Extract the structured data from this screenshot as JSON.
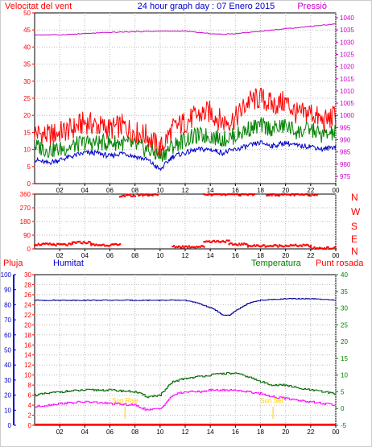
{
  "header": {
    "wind_label": "Velocitat del vent",
    "title": "24 hour graph day : 07 Enero 2015",
    "pressure_label": "Pressió"
  },
  "compass": [
    "N",
    "W",
    "S",
    "E",
    "N"
  ],
  "bottom_header": {
    "rain": "Pluja",
    "humidity": "Humitat",
    "temperature": "Temperatura",
    "dewpoint": "Punt rosada"
  },
  "markers": {
    "sunrise": "Sun Rise",
    "sunset": "Sun Set"
  },
  "colors": {
    "wind_gust": "#ff0000",
    "wind_avg": "#0000cc",
    "wind_low": "#008000",
    "pressure": "#cc00cc",
    "direction": "#ff0000",
    "humidity": "#000099",
    "temperature": "#006600",
    "dewpoint": "#ff00ff",
    "rain": "#ff0000",
    "sun": "#ffcc00"
  },
  "chart_data": [
    {
      "type": "line",
      "title": "24 hour graph day : 07 Enero 2015",
      "x_ticks": [
        "02",
        "04",
        "06",
        "08",
        "10",
        "12",
        "14",
        "16",
        "18",
        "20",
        "22",
        "00"
      ],
      "y_left_ticks": [
        0,
        5,
        10,
        15,
        20,
        25,
        30,
        35,
        40,
        45,
        50
      ],
      "y_right_ticks": [
        975,
        980,
        985,
        990,
        995,
        1000,
        1005,
        1010,
        1015,
        1020,
        1025,
        1030,
        1035,
        1040
      ],
      "ylim_left": [
        0,
        50
      ],
      "ylim_right": [
        972,
        1042
      ],
      "xlim": [
        0,
        24
      ],
      "grid": true,
      "series": [
        {
          "name": "Velocitat del vent",
          "axis": "left",
          "x": [
            0,
            1,
            2,
            3,
            4,
            5,
            6,
            7,
            8,
            9,
            10,
            11,
            12,
            13,
            14,
            15,
            16,
            17,
            18,
            19,
            20,
            21,
            22,
            23,
            24
          ],
          "values": [
            15,
            14,
            15,
            16,
            18,
            17,
            16,
            17,
            15,
            14,
            10,
            16,
            18,
            20,
            21,
            18,
            19,
            24,
            25,
            23,
            24,
            20,
            21,
            18,
            20
          ]
        },
        {
          "name": "wind average",
          "axis": "left",
          "x": [
            0,
            1,
            2,
            3,
            4,
            5,
            6,
            7,
            8,
            9,
            10,
            11,
            12,
            13,
            14,
            15,
            16,
            17,
            18,
            19,
            20,
            21,
            22,
            23,
            24
          ],
          "values": [
            11,
            10,
            10,
            11,
            12,
            12,
            12,
            12,
            11,
            10,
            8,
            11,
            13,
            14,
            14,
            13,
            14,
            16,
            17,
            16,
            17,
            15,
            16,
            14,
            15
          ]
        },
        {
          "name": "wind low",
          "axis": "left",
          "x": [
            0,
            1,
            2,
            3,
            4,
            5,
            6,
            7,
            8,
            9,
            10,
            11,
            12,
            13,
            14,
            15,
            16,
            17,
            18,
            19,
            20,
            21,
            22,
            23,
            24
          ],
          "values": [
            7,
            6,
            7,
            8,
            9,
            9,
            8,
            9,
            8,
            7,
            4,
            8,
            9,
            10,
            10,
            9,
            10,
            11,
            12,
            11,
            12,
            11,
            11,
            10,
            11
          ]
        },
        {
          "name": "Pressió",
          "axis": "right",
          "x": [
            0,
            2,
            4,
            6,
            8,
            10,
            12,
            14,
            15,
            16,
            18,
            20,
            22,
            24
          ],
          "values": [
            1033,
            1033,
            1033.5,
            1034,
            1034.3,
            1034.5,
            1034.5,
            1033.5,
            1033.2,
            1033.5,
            1034.5,
            1035.5,
            1036.5,
            1037.5
          ]
        }
      ]
    },
    {
      "type": "scatter",
      "title": "",
      "x_ticks": [
        "02",
        "04",
        "06",
        "08",
        "10",
        "12",
        "14",
        "16",
        "18",
        "20",
        "22",
        "00"
      ],
      "y_ticks": [
        0,
        90,
        180,
        270,
        360
      ],
      "ylim": [
        0,
        360
      ],
      "xlim": [
        0,
        24
      ],
      "series": [
        {
          "name": "direction",
          "segments": [
            {
              "x0": 0.0,
              "x1": 1.5,
              "y": 30
            },
            {
              "x0": 1.5,
              "x1": 3.0,
              "y": 28
            },
            {
              "x0": 3.0,
              "x1": 4.5,
              "y": 42
            },
            {
              "x0": 4.5,
              "x1": 6.8,
              "y": 26
            },
            {
              "x0": 6.8,
              "x1": 8.0,
              "y": 350
            },
            {
              "x0": 8.2,
              "x1": 9.8,
              "y": 356
            },
            {
              "x0": 11.0,
              "x1": 13.5,
              "y": 15
            },
            {
              "x0": 13.5,
              "x1": 15.5,
              "y": 50
            },
            {
              "x0": 15.5,
              "x1": 17.0,
              "y": 30
            },
            {
              "x0": 17.0,
              "x1": 19.5,
              "y": 20
            },
            {
              "x0": 19.5,
              "x1": 22.0,
              "y": 22
            },
            {
              "x0": 22.0,
              "x1": 24.0,
              "y": 5
            },
            {
              "x0": 13.5,
              "x1": 17.5,
              "y": 358
            },
            {
              "x0": 18.5,
              "x1": 22.5,
              "y": 357
            }
          ]
        }
      ]
    },
    {
      "type": "line",
      "title": "",
      "x_ticks": [
        "02",
        "04",
        "06",
        "08",
        "10",
        "12",
        "14",
        "16",
        "18",
        "20",
        "22",
        "00"
      ],
      "y_rain_ticks": [
        0,
        2,
        4,
        6,
        8,
        10,
        12,
        14,
        16,
        18,
        20,
        22,
        24,
        26,
        28,
        30
      ],
      "y_humidity_ticks": [
        0,
        10,
        20,
        30,
        40,
        50,
        60,
        70,
        80,
        90,
        100
      ],
      "y_temp_ticks": [
        -5,
        0,
        5,
        10,
        15,
        20,
        25,
        30,
        35,
        40
      ],
      "ylim_rain": [
        0,
        30
      ],
      "ylim_humidity": [
        0,
        100
      ],
      "ylim_temp": [
        -5,
        40
      ],
      "xlim": [
        0,
        24
      ],
      "grid": true,
      "series": [
        {
          "name": "Humitat",
          "axis": "humidity",
          "x": [
            0,
            2,
            4,
            6,
            8,
            10,
            11,
            12,
            13,
            14,
            14.5,
            15,
            15.5,
            16,
            17,
            18,
            20,
            22,
            24
          ],
          "values": [
            83,
            83,
            83,
            83,
            83,
            83,
            83,
            83,
            81,
            78,
            76,
            73,
            73,
            76,
            81,
            83,
            84,
            84,
            83
          ]
        },
        {
          "name": "Temperatura",
          "axis": "temp",
          "x": [
            0,
            1,
            2,
            4,
            6,
            8,
            9,
            10,
            11,
            12,
            13,
            14,
            15,
            16,
            17,
            18,
            19,
            20,
            21,
            22,
            23,
            24
          ],
          "values": [
            4,
            4.5,
            5,
            5.5,
            5.5,
            5,
            3.5,
            4,
            8,
            9,
            9.5,
            10,
            10.5,
            10.5,
            9.5,
            8,
            7,
            7,
            6,
            5.5,
            5,
            4.5
          ]
        },
        {
          "name": "Punt rosada",
          "axis": "temp",
          "x": [
            0,
            1,
            2,
            4,
            6,
            8,
            9,
            10,
            11,
            12,
            13,
            14,
            15,
            16,
            17,
            18,
            19,
            20,
            21,
            22,
            23,
            24
          ],
          "values": [
            0.5,
            1,
            1.5,
            2,
            1.5,
            1,
            -0.5,
            0,
            4,
            5,
            5,
            5.5,
            5.5,
            5.5,
            5,
            4.5,
            3.5,
            3,
            2.5,
            2,
            1.5,
            1
          ]
        },
        {
          "name": "Pluja",
          "axis": "rain",
          "x": [
            0,
            24
          ],
          "values": [
            0,
            0
          ]
        }
      ],
      "sun_rise_hour": 7.2,
      "sun_set_hour": 19.0
    }
  ]
}
